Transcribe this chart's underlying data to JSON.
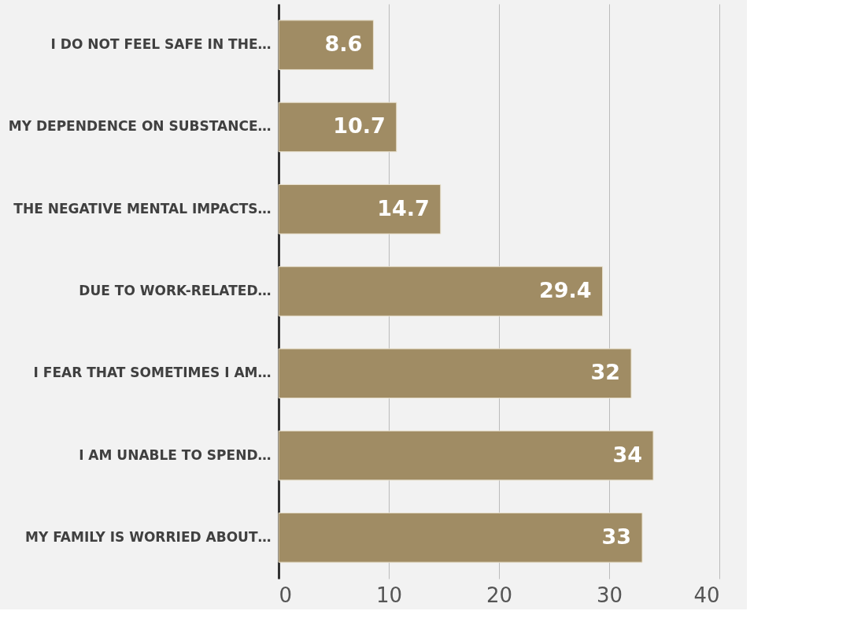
{
  "chart_data": {
    "type": "bar",
    "orientation": "horizontal",
    "categories": [
      "I DO NOT FEEL SAFE IN THE…",
      "MY DEPENDENCE ON SUBSTANCE…",
      "THE NEGATIVE MENTAL IMPACTS…",
      "DUE TO WORK-RELATED…",
      "I FEAR THAT SOMETIMES I AM…",
      "I AM UNABLE TO SPEND…",
      "MY FAMILY IS WORRIED ABOUT…"
    ],
    "values": [
      8.6,
      10.7,
      14.7,
      29.4,
      32,
      34,
      33
    ],
    "color": "#a08c64",
    "xlim": [
      0,
      40
    ],
    "xticks": [
      0,
      10,
      20,
      30,
      40
    ],
    "grid": "x",
    "data_labels": true
  }
}
